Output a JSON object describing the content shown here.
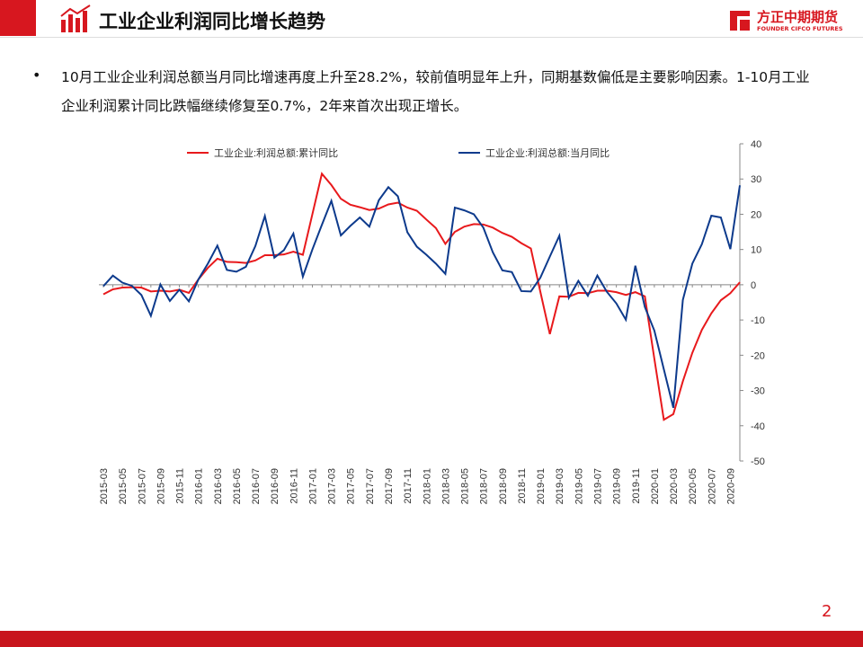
{
  "header": {
    "title": "工业企业利润同比增长趋势"
  },
  "logo": {
    "name": "方正中期期货",
    "subtitle": "FOUNDER CIFCO FUTURES"
  },
  "bullet": "10月工业企业利润总额当月同比增速再度上升至28.2%，较前值明显年上升，同期基数偏低是主要影响因素。1-10月工业企业利润累计同比跌幅继续修复至0.7%，2年来首次出现正增长。",
  "page_number": "2",
  "chart_data": {
    "type": "line",
    "categories": [
      "2015-03",
      null,
      "2015-05",
      null,
      "2015-07",
      null,
      "2015-09",
      null,
      "2015-11",
      null,
      "2016-01",
      null,
      "2016-03",
      null,
      "2016-05",
      null,
      "2016-07",
      null,
      "2016-09",
      null,
      "2016-11",
      null,
      "2017-01",
      null,
      "2017-03",
      null,
      "2017-05",
      null,
      "2017-07",
      null,
      "2017-09",
      null,
      "2017-11",
      null,
      "2018-01",
      null,
      "2018-03",
      null,
      "2018-05",
      null,
      "2018-07",
      null,
      "2018-09",
      null,
      "2018-11",
      null,
      "2019-01",
      null,
      "2019-03",
      null,
      "2019-05",
      null,
      "2019-07",
      null,
      "2019-09",
      null,
      "2019-11",
      null,
      "2020-01",
      null,
      "2020-03",
      null,
      "2020-05",
      null,
      "2020-07",
      null,
      "2020-09",
      null
    ],
    "series": [
      {
        "name": "工业企业:利润总额:累计同比",
        "color": "#e8191c",
        "values": [
          -2.7,
          -1.3,
          -0.8,
          -0.7,
          -0.8,
          -1.9,
          -1.7,
          -1.9,
          -1.4,
          -2.3,
          1.5,
          4.8,
          7.4,
          6.5,
          6.4,
          6.2,
          6.9,
          8.4,
          8.4,
          8.6,
          9.4,
          8.5,
          20,
          31.5,
          28.3,
          24.4,
          22.7,
          22.0,
          21.2,
          21.6,
          22.8,
          23.3,
          21.9,
          21.0,
          18.5,
          16.1,
          11.6,
          15.0,
          16.5,
          17.2,
          17.1,
          16.2,
          14.7,
          13.6,
          11.8,
          10.3,
          -2,
          -14.0,
          -3.3,
          -3.4,
          -2.3,
          -2.4,
          -1.7,
          -1.7,
          -2.1,
          -2.9,
          -2.1,
          -3.3,
          -21,
          -38.3,
          -36.7,
          -27.4,
          -19.3,
          -12.8,
          -8.1,
          -4.4,
          -2.4,
          0.7
        ]
      },
      {
        "name": "工业企业:利润总额:当月同比",
        "color": "#0d3a8c",
        "values": [
          -0.4,
          2.6,
          0.6,
          -0.3,
          -2.9,
          -8.8,
          0.1,
          -4.6,
          -1.4,
          -4.7,
          1.5,
          6.0,
          11.1,
          4.2,
          3.7,
          5.1,
          11.0,
          19.5,
          7.7,
          9.8,
          14.5,
          2.3,
          10,
          17,
          23.8,
          14.0,
          16.7,
          19.1,
          16.5,
          24.0,
          27.7,
          25.1,
          14.9,
          10.8,
          8.5,
          6.0,
          3.1,
          21.9,
          21.1,
          20.0,
          16.2,
          9.2,
          4.1,
          3.6,
          -1.8,
          -1.9,
          2,
          8,
          13.9,
          -3.7,
          1.1,
          -3.1,
          2.6,
          -2.0,
          -5.3,
          -9.9,
          5.4,
          -6.3,
          -13,
          -24,
          -34.9,
          -4.3,
          6.0,
          11.5,
          19.6,
          19.1,
          10.1,
          28.2
        ]
      }
    ],
    "ylim": [
      -50,
      40
    ],
    "yticks": [
      40,
      30,
      20,
      10,
      0,
      -10,
      -20,
      -30,
      -40,
      -50
    ],
    "grid": false
  }
}
